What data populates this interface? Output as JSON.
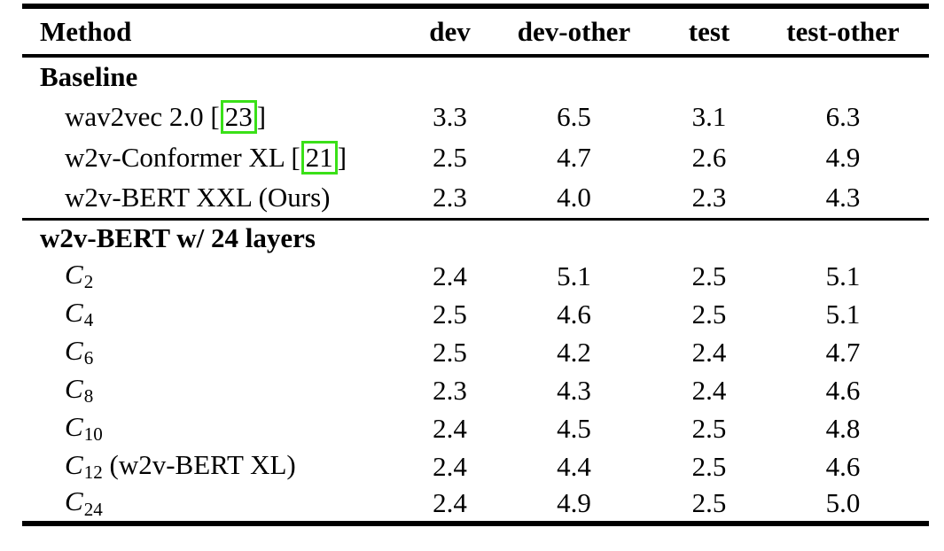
{
  "colors": {
    "cite_green": "#3ae018",
    "text": "#000000",
    "background": "#ffffff"
  },
  "table": {
    "columns": [
      {
        "key": "method",
        "label": "Method"
      },
      {
        "key": "dev",
        "label": "dev"
      },
      {
        "key": "dev-other",
        "label": "dev-other"
      },
      {
        "key": "test",
        "label": "test"
      },
      {
        "key": "test-other",
        "label": "test-other"
      }
    ],
    "sections": [
      {
        "title": "Baseline",
        "rows": [
          {
            "method_parts": [
              {
                "type": "text",
                "text": "wav2vec 2.0 ["
              },
              {
                "type": "cite",
                "text": "23"
              },
              {
                "type": "text",
                "text": "]"
              }
            ],
            "values": [
              "3.3",
              "6.5",
              "3.1",
              "6.3"
            ]
          },
          {
            "method_parts": [
              {
                "type": "text",
                "text": "w2v-Conformer XL ["
              },
              {
                "type": "cite",
                "text": "21"
              },
              {
                "type": "text",
                "text": "]"
              }
            ],
            "values": [
              "2.5",
              "4.7",
              "2.6",
              "4.9"
            ]
          },
          {
            "method_parts": [
              {
                "type": "text",
                "text": "w2v-BERT XXL (Ours)"
              }
            ],
            "values": [
              "2.3",
              "4.0",
              "2.3",
              "4.3"
            ]
          }
        ]
      },
      {
        "title": "w2v-BERT w/ 24 layers",
        "rows": [
          {
            "method_parts": [
              {
                "type": "math",
                "text": "C"
              },
              {
                "type": "sub",
                "text": "2"
              }
            ],
            "values": [
              "2.4",
              "5.1",
              "2.5",
              "5.1"
            ]
          },
          {
            "method_parts": [
              {
                "type": "math",
                "text": "C"
              },
              {
                "type": "sub",
                "text": "4"
              }
            ],
            "values": [
              "2.5",
              "4.6",
              "2.5",
              "5.1"
            ]
          },
          {
            "method_parts": [
              {
                "type": "math",
                "text": "C"
              },
              {
                "type": "sub",
                "text": "6"
              }
            ],
            "values": [
              "2.5",
              "4.2",
              "2.4",
              "4.7"
            ]
          },
          {
            "method_parts": [
              {
                "type": "math",
                "text": "C"
              },
              {
                "type": "sub",
                "text": "8"
              }
            ],
            "values": [
              "2.3",
              "4.3",
              "2.4",
              "4.6"
            ]
          },
          {
            "method_parts": [
              {
                "type": "math",
                "text": "C"
              },
              {
                "type": "sub",
                "text": "10"
              }
            ],
            "values": [
              "2.4",
              "4.5",
              "2.5",
              "4.8"
            ]
          },
          {
            "method_parts": [
              {
                "type": "math",
                "text": "C"
              },
              {
                "type": "sub",
                "text": "12"
              },
              {
                "type": "text",
                "text": " (w2v-BERT XL)"
              }
            ],
            "values": [
              "2.4",
              "4.4",
              "2.5",
              "4.6"
            ]
          },
          {
            "method_parts": [
              {
                "type": "math",
                "text": "C"
              },
              {
                "type": "sub",
                "text": "24"
              }
            ],
            "values": [
              "2.4",
              "4.9",
              "2.5",
              "5.0"
            ]
          }
        ]
      }
    ]
  }
}
